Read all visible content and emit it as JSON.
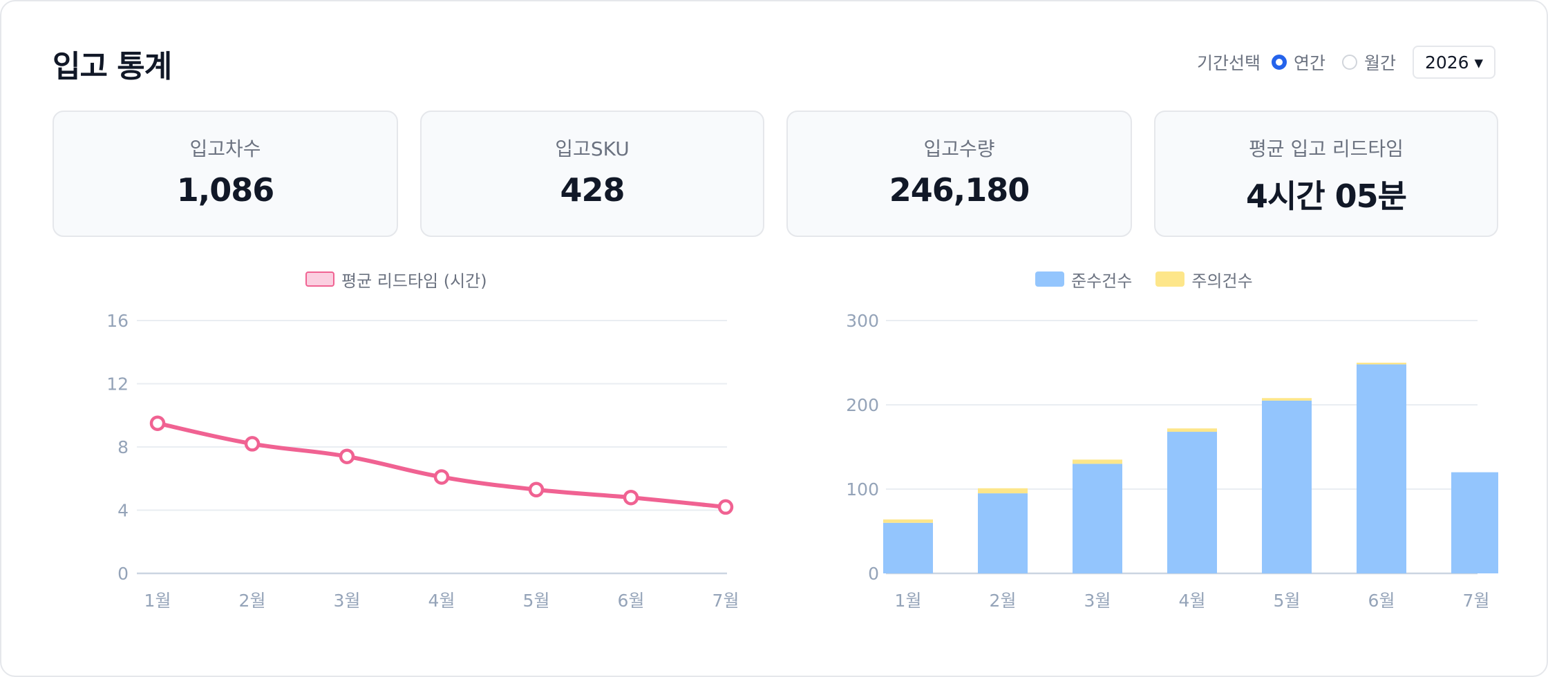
{
  "header": {
    "title": "입고 통계",
    "period_label": "기간선택",
    "options": [
      {
        "label": "연간",
        "selected": true
      },
      {
        "label": "월간",
        "selected": false
      }
    ],
    "year": "2026 ▾"
  },
  "kpis": [
    {
      "label": "입고차수",
      "value": "1,086"
    },
    {
      "label": "입고SKU",
      "value": "428"
    },
    {
      "label": "입고수량",
      "value": "246,180"
    },
    {
      "label": "평균 입고 리드타임",
      "value": "4시간 05분"
    }
  ],
  "chart_data": [
    {
      "type": "line",
      "categories": [
        "1월",
        "2월",
        "3월",
        "4월",
        "5월",
        "6월",
        "7월"
      ],
      "series": [
        {
          "name": "평균 리드타임 (시간)",
          "values": [
            9.5,
            8.2,
            7.4,
            6.1,
            5.3,
            4.8,
            4.2
          ],
          "color": "#f06292"
        }
      ],
      "ylim": [
        0,
        16
      ],
      "yticks": [
        "0",
        "4",
        "8",
        "12",
        "16"
      ],
      "grid": true,
      "legend": "top"
    },
    {
      "type": "bar",
      "stacked": true,
      "categories": [
        "1월",
        "2월",
        "3월",
        "4월",
        "5월",
        "6월",
        "7월"
      ],
      "series": [
        {
          "name": "준수건수",
          "values": [
            60,
            95,
            130,
            168,
            205,
            248,
            120
          ],
          "color": "#93c5fd"
        },
        {
          "name": "주의건수",
          "values": [
            4,
            6,
            5,
            4,
            3,
            2,
            0
          ],
          "color": "#fde68a"
        }
      ],
      "ylim": [
        0,
        300
      ],
      "yticks": [
        "0",
        "100",
        "200",
        "300"
      ],
      "grid": true,
      "legend": "top"
    }
  ]
}
